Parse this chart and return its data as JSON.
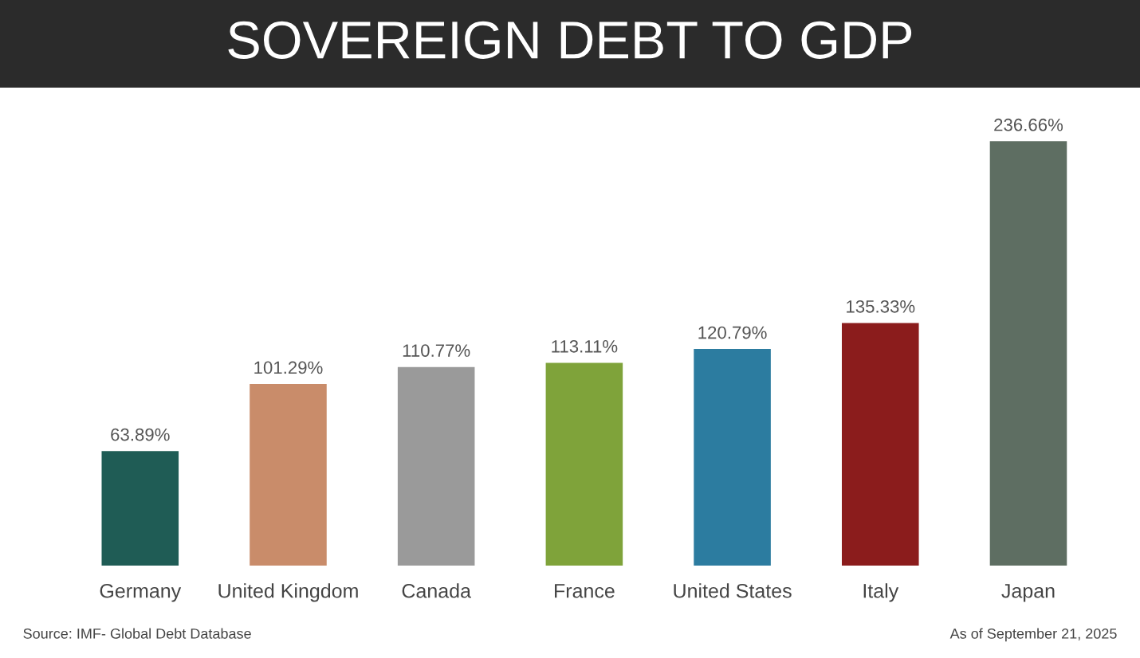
{
  "chart_data": {
    "type": "bar",
    "title": "SOVEREIGN DEBT TO GDP",
    "categories": [
      "Germany",
      "United Kingdom",
      "Canada",
      "France",
      "United States",
      "Italy",
      "Japan"
    ],
    "values": [
      63.89,
      101.29,
      110.77,
      113.11,
      120.79,
      135.33,
      236.66
    ],
    "value_labels": [
      "63.89%",
      "101.29%",
      "110.77%",
      "113.11%",
      "120.79%",
      "135.33%",
      "236.66%"
    ],
    "colors": [
      "#1f5c55",
      "#c98c6a",
      "#9a9a9a",
      "#7fa33a",
      "#2c7ca0",
      "#8b1c1c",
      "#5e6e62"
    ],
    "annotations": [
      "Source: IMF- Global Debt Database",
      "As of September 21, 2025"
    ],
    "grid": false,
    "legend": false
  }
}
